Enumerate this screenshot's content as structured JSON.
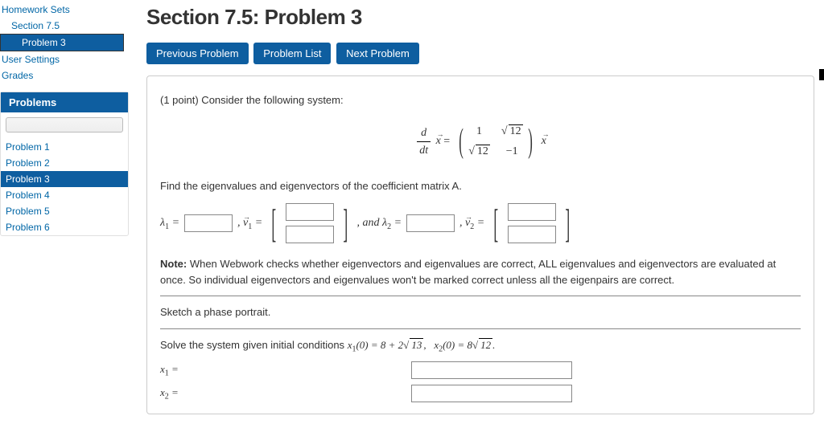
{
  "sidebar": {
    "top_links": [
      {
        "label": "Homework Sets",
        "indent": 0
      },
      {
        "label": "Section 7.5",
        "indent": 1
      },
      {
        "label": "Problem 3",
        "indent": 2,
        "active": true
      }
    ],
    "user_links": [
      "User Settings",
      "Grades"
    ],
    "problems_header": "Problems",
    "problems": [
      "Problem 1",
      "Problem 2",
      "Problem 3",
      "Problem 4",
      "Problem 5",
      "Problem 6"
    ],
    "current_problem_index": 2
  },
  "header": {
    "title": "Section 7.5: Problem 3",
    "buttons": {
      "prev": "Previous Problem",
      "list": "Problem List",
      "next": "Next Problem"
    }
  },
  "problem": {
    "points_intro": "(1 point) Consider the following system:",
    "equation": {
      "lhs_frac_num": "d",
      "lhs_frac_den": "dt",
      "lhs_vec": "x̄ =",
      "matrix": [
        [
          "1",
          "√12"
        ],
        [
          "√12",
          "−1"
        ]
      ],
      "rhs_vec": "x̄"
    },
    "find_text": "Find the eigenvalues and eigenvectors of the coefficient matrix A.",
    "lambda1": "λ₁ =",
    "v1": ", v̄₁ =",
    "and": ", and ",
    "lambda2": "λ₂ =",
    "v2": ", v̄₂ =",
    "note_label": "Note:",
    "note_text": " When Webwork checks whether eigenvectors and eigenvalues are correct, ALL eigenvalues and eigenvectors are evaluated at once. So individual eigenvectors and eigenvalues won't be marked correct unless all the eigenpairs are correct.",
    "sketch": "Sketch a phase portrait.",
    "solve_text_prefix": "Solve the system given initial conditions ",
    "ic1": "x₁(0) = 8 + 2√13,",
    "ic2": "x₂(0) = 8√12.",
    "x1_label": "x₁ =",
    "x2_label": "x₂ ="
  },
  "colors": {
    "accent": "#0e5ea0",
    "link": "#0066a6"
  }
}
